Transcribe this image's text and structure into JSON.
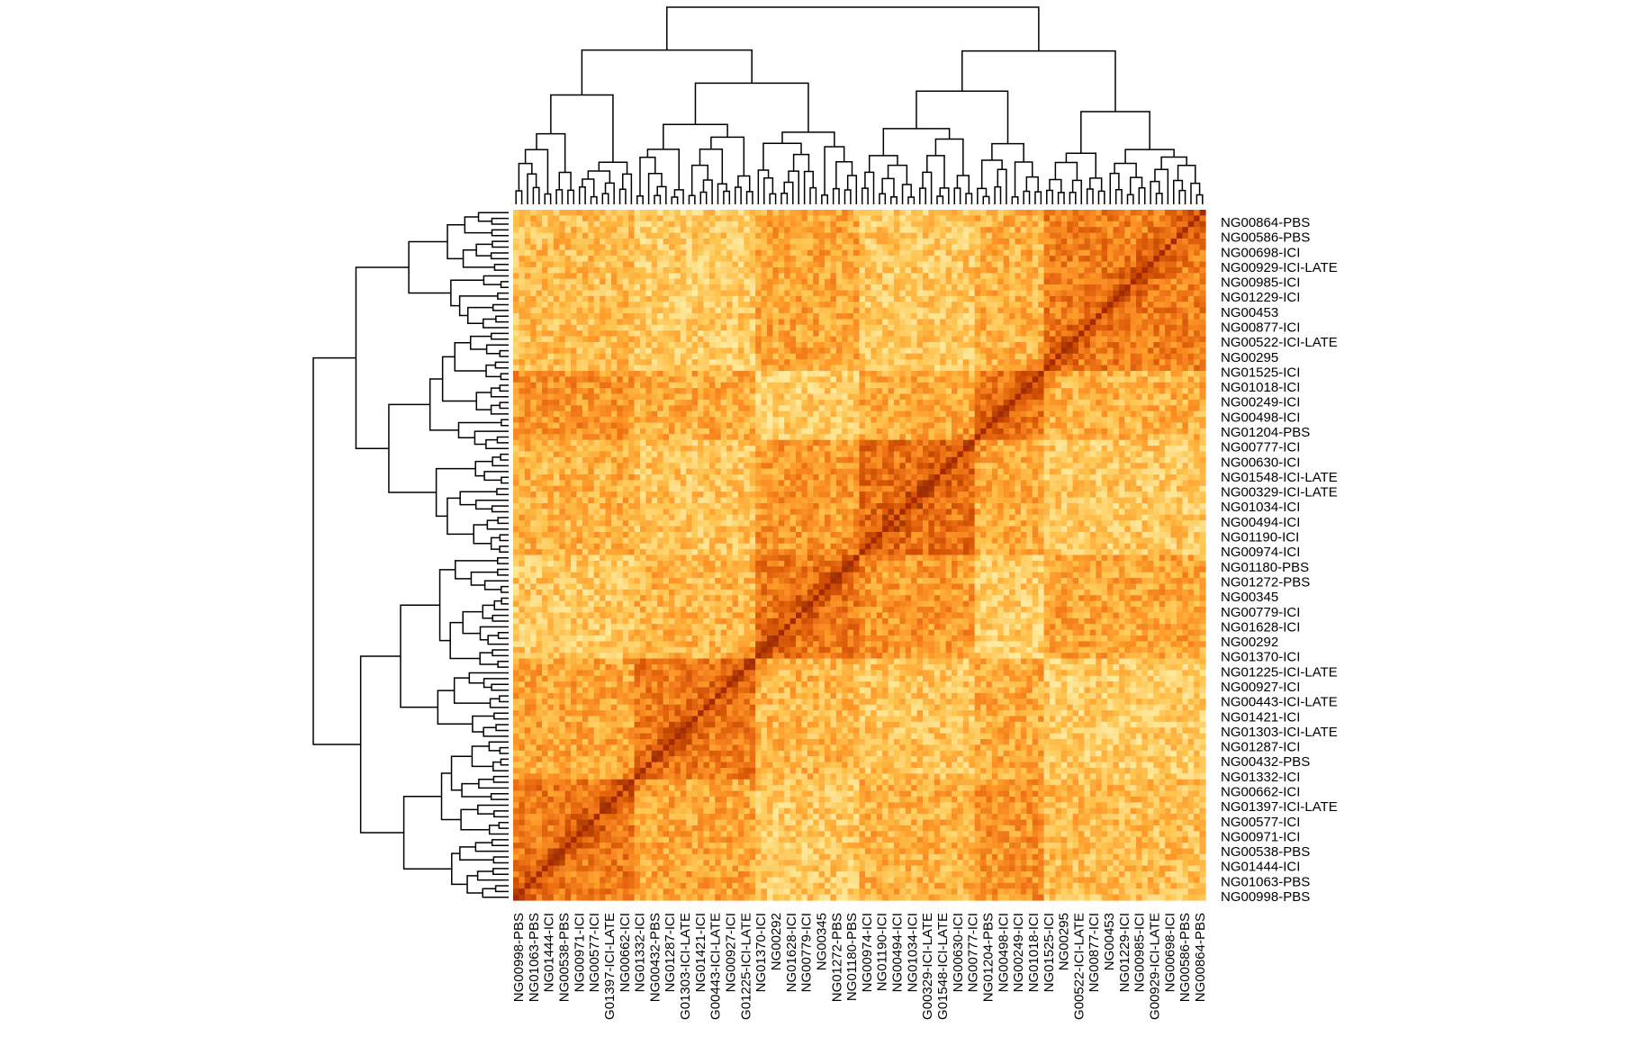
{
  "chart_data": {
    "type": "heatmap",
    "title": "",
    "xlabel": "",
    "ylabel": "",
    "matrix_size": 120,
    "symmetric": true,
    "colormap": [
      "#fffbc2",
      "#fee391",
      "#fec44f",
      "#fe9929",
      "#ec7014",
      "#cc4c02",
      "#8c2d04"
    ],
    "diagonal_color": "#a62a04",
    "dendrogram_color": "#000000",
    "dendrogram_top": true,
    "dendrogram_left": true,
    "cluster_groups": [
      {
        "start": 0,
        "end": 21
      },
      {
        "start": 21,
        "end": 42
      },
      {
        "start": 42,
        "end": 60
      },
      {
        "start": 60,
        "end": 80
      },
      {
        "start": 80,
        "end": 92
      },
      {
        "start": 92,
        "end": 120
      }
    ],
    "row_labels": [
      "NG00864-PBS",
      "NG00586-PBS",
      "NG00698-ICI",
      "NG00929-ICI-LATE",
      "NG00985-ICI",
      "NG01229-ICI",
      "NG00453",
      "NG00877-ICI",
      "NG00522-ICI-LATE",
      "NG00295",
      "NG01525-ICI",
      "NG01018-ICI",
      "NG00249-ICI",
      "NG00498-ICI",
      "NG01204-PBS",
      "NG00777-ICI",
      "NG00630-ICI",
      "NG01548-ICI-LATE",
      "NG00329-ICI-LATE",
      "NG01034-ICI",
      "NG00494-ICI",
      "NG01190-ICI",
      "NG00974-ICI",
      "NG01180-PBS",
      "NG01272-PBS",
      "NG00345",
      "NG00779-ICI",
      "NG01628-ICI",
      "NG00292",
      "NG01370-ICI",
      "NG01225-ICI-LATE",
      "NG00927-ICI",
      "NG00443-ICI-LATE",
      "NG01421-ICI",
      "NG01303-ICI-LATE",
      "NG01287-ICI",
      "NG00432-PBS",
      "NG01332-ICI",
      "NG00662-ICI",
      "NG01397-ICI-LATE",
      "NG00577-ICI",
      "NG00971-ICI",
      "NG00538-PBS",
      "NG01444-ICI",
      "NG01063-PBS",
      "NG00998-PBS"
    ],
    "col_labels": [
      "NG00998-PBS",
      "NG01063-PBS",
      "NG01444-ICI",
      "NG00538-PBS",
      "NG00971-ICI",
      "NG00577-ICI",
      "G01397-ICI-LATE",
      "NG00662-ICI",
      "NG01332-ICI",
      "NG00432-PBS",
      "NG01287-ICI",
      "G01303-ICI-LATE",
      "NG01421-ICI",
      "G00443-ICI-LATE",
      "NG00927-ICI",
      "G01225-ICI-LATE",
      "NG01370-ICI",
      "NG00292",
      "NG01628-ICI",
      "NG00779-ICI",
      "NG00345",
      "NG01272-PBS",
      "NG01180-PBS",
      "NG00974-ICI",
      "NG01190-ICI",
      "NG00494-ICI",
      "NG01034-ICI",
      "G00329-ICI-LATE",
      "G01548-ICI-LATE",
      "NG00630-ICI",
      "NG00777-ICI",
      "NG01204-PBS",
      "NG00498-ICI",
      "NG00249-ICI",
      "NG01018-ICI",
      "NG01525-ICI",
      "NG00295",
      "G00522-ICI-LATE",
      "NG00877-ICI",
      "NG00453",
      "NG01229-ICI",
      "NG00985-ICI",
      "G00929-ICI-LATE",
      "NG00698-ICI",
      "NG00586-PBS",
      "NG00864-PBS"
    ]
  }
}
